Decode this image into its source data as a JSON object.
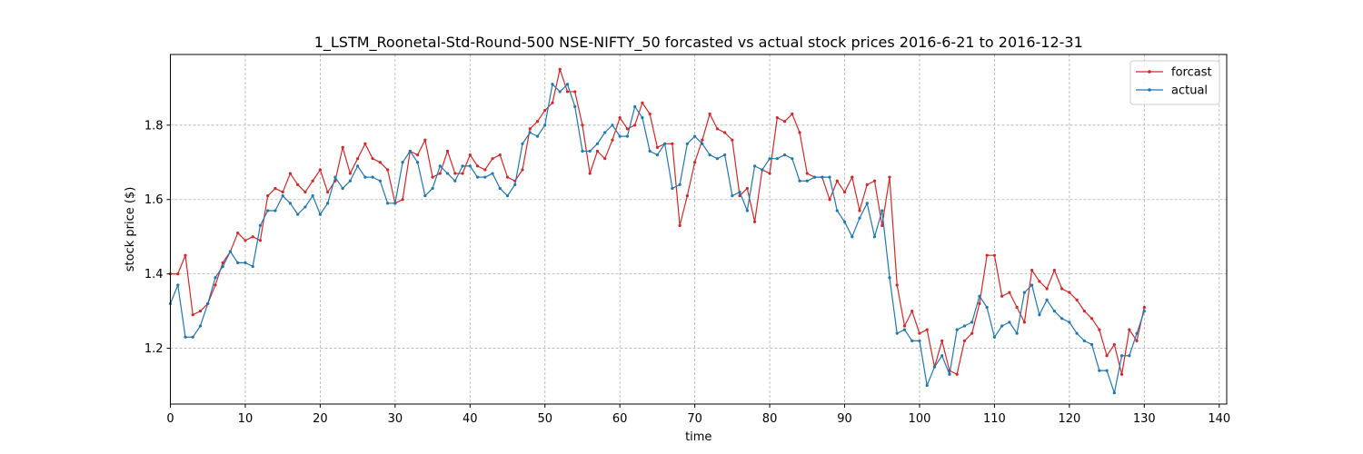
{
  "chart_data": {
    "type": "line",
    "title": "1_LSTM_Roonetal-Std-Round-500 NSE-NIFTY_50 forcasted vs actual stock prices 2016-6-21 to 2016-12-31",
    "xlabel": "time",
    "ylabel": "stock price ($)",
    "xlim": [
      0,
      141
    ],
    "ylim": [
      1.05,
      1.99
    ],
    "xticks": [
      0,
      10,
      20,
      30,
      40,
      50,
      60,
      70,
      80,
      90,
      100,
      110,
      120,
      130,
      140
    ],
    "yticks": [
      1.2,
      1.4,
      1.6,
      1.8
    ],
    "ytick_labels": [
      "1.2",
      "1.4",
      "1.6",
      "1.8"
    ],
    "grid": true,
    "legend_position": "top-right",
    "series": [
      {
        "name": "forcast",
        "color": "#d62728",
        "values": [
          1.4,
          1.4,
          1.45,
          1.29,
          1.3,
          1.32,
          1.37,
          1.43,
          1.46,
          1.51,
          1.49,
          1.5,
          1.49,
          1.61,
          1.63,
          1.62,
          1.67,
          1.64,
          1.62,
          1.65,
          1.68,
          1.62,
          1.65,
          1.74,
          1.67,
          1.71,
          1.75,
          1.71,
          1.7,
          1.68,
          1.59,
          1.6,
          1.73,
          1.72,
          1.76,
          1.66,
          1.67,
          1.73,
          1.67,
          1.67,
          1.72,
          1.69,
          1.68,
          1.71,
          1.72,
          1.66,
          1.65,
          1.68,
          1.79,
          1.81,
          1.84,
          1.86,
          1.95,
          1.89,
          1.89,
          1.8,
          1.67,
          1.73,
          1.71,
          1.76,
          1.82,
          1.79,
          1.8,
          1.86,
          1.83,
          1.74,
          1.75,
          1.75,
          1.53,
          1.61,
          1.7,
          1.76,
          1.83,
          1.79,
          1.78,
          1.76,
          1.61,
          1.63,
          1.54,
          1.68,
          1.67,
          1.82,
          1.81,
          1.83,
          1.78,
          1.67,
          1.66,
          1.66,
          1.6,
          1.65,
          1.62,
          1.66,
          1.57,
          1.64,
          1.65,
          1.53,
          1.66,
          1.37,
          1.26,
          1.3,
          1.24,
          1.25,
          1.15,
          1.22,
          1.14,
          1.13,
          1.22,
          1.24,
          1.32,
          1.45,
          1.45,
          1.34,
          1.35,
          1.31,
          1.27,
          1.41,
          1.38,
          1.36,
          1.41,
          1.36,
          1.35,
          1.33,
          1.3,
          1.28,
          1.25,
          1.18,
          1.21,
          1.13,
          1.25,
          1.22,
          1.31
        ]
      },
      {
        "name": "actual",
        "color": "#1f77b4",
        "values": [
          1.32,
          1.37,
          1.23,
          1.23,
          1.26,
          1.32,
          1.39,
          1.42,
          1.46,
          1.43,
          1.43,
          1.42,
          1.53,
          1.57,
          1.57,
          1.61,
          1.59,
          1.56,
          1.58,
          1.61,
          1.56,
          1.59,
          1.66,
          1.63,
          1.65,
          1.69,
          1.66,
          1.66,
          1.65,
          1.59,
          1.59,
          1.7,
          1.73,
          1.7,
          1.61,
          1.63,
          1.69,
          1.67,
          1.65,
          1.69,
          1.69,
          1.66,
          1.66,
          1.67,
          1.63,
          1.61,
          1.64,
          1.75,
          1.78,
          1.77,
          1.8,
          1.91,
          1.89,
          1.91,
          1.85,
          1.73,
          1.73,
          1.75,
          1.78,
          1.8,
          1.77,
          1.77,
          1.85,
          1.82,
          1.73,
          1.72,
          1.75,
          1.63,
          1.64,
          1.75,
          1.77,
          1.75,
          1.72,
          1.71,
          1.72,
          1.61,
          1.62,
          1.57,
          1.69,
          1.68,
          1.71,
          1.71,
          1.72,
          1.71,
          1.65,
          1.65,
          1.66,
          1.66,
          1.66,
          1.57,
          1.54,
          1.5,
          1.55,
          1.59,
          1.5,
          1.57,
          1.39,
          1.24,
          1.25,
          1.22,
          1.22,
          1.1,
          1.15,
          1.18,
          1.13,
          1.25,
          1.26,
          1.27,
          1.34,
          1.31,
          1.23,
          1.26,
          1.27,
          1.24,
          1.35,
          1.37,
          1.29,
          1.33,
          1.3,
          1.28,
          1.27,
          1.24,
          1.22,
          1.21,
          1.14,
          1.14,
          1.08,
          1.18,
          1.18,
          1.24,
          1.3
        ]
      }
    ]
  }
}
